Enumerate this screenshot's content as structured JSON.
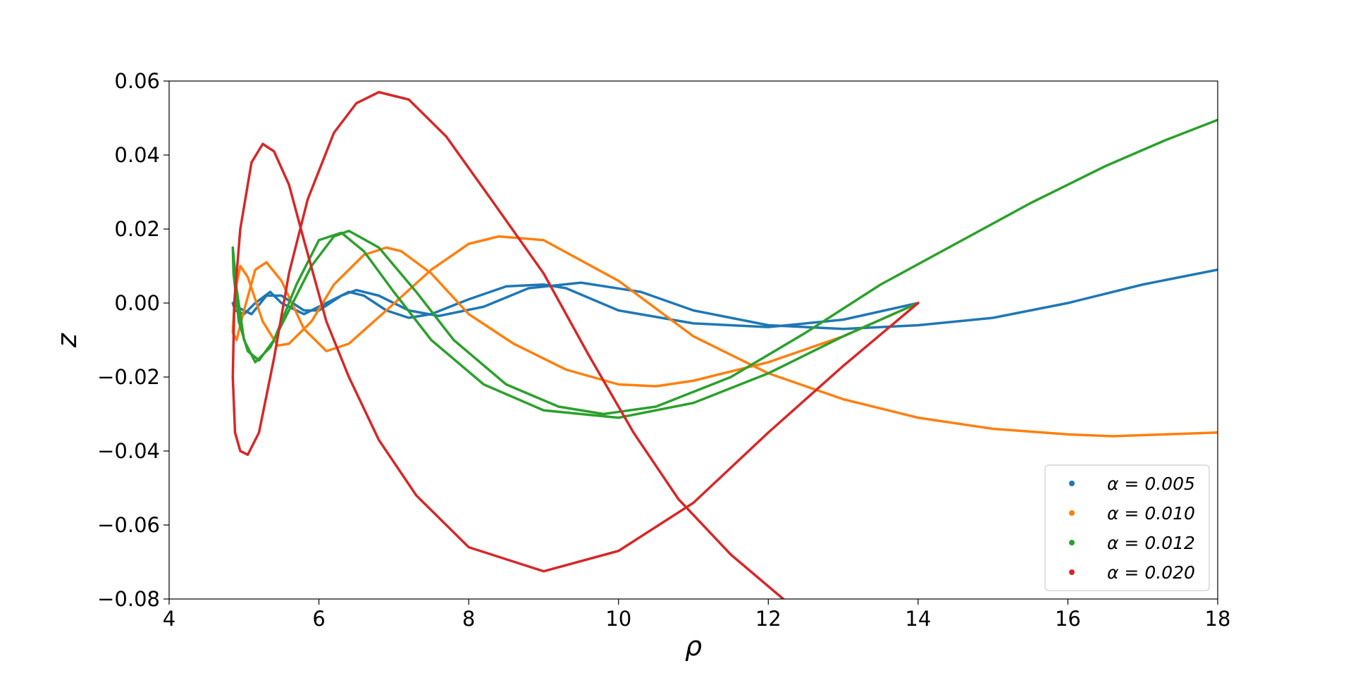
{
  "chart_data": {
    "type": "line",
    "xlabel": "ρ",
    "ylabel": "z",
    "xlim": [
      4,
      18
    ],
    "ylim": [
      -0.08,
      0.06
    ],
    "xticks": [
      4,
      6,
      8,
      10,
      12,
      14,
      16,
      18
    ],
    "yticks": [
      {
        "value": -0.08,
        "label": "−0.08"
      },
      {
        "value": -0.06,
        "label": "−0.06"
      },
      {
        "value": -0.04,
        "label": "−0.04"
      },
      {
        "value": -0.02,
        "label": "−0.02"
      },
      {
        "value": 0,
        "label": "0.00"
      },
      0.02,
      0.04,
      0.06
    ],
    "grid": false,
    "legend": "lower right",
    "series": [
      {
        "name": "α = 0.005",
        "color": "#1f77b4",
        "x": [
          14,
          13,
          12,
          11,
          10,
          9.3,
          9,
          8.5,
          8,
          7.5,
          7.2,
          6.9,
          6.6,
          6.4,
          6.1,
          5.8,
          5.5,
          5.35,
          5.15,
          5.0,
          4.88,
          4.85,
          4.9,
          5.1,
          5.3,
          5.5,
          5.8,
          6.0,
          6.3,
          6.5,
          6.8,
          7.2,
          7.6,
          8.2,
          8.8,
          9.5,
          10.3,
          11,
          12,
          13,
          14,
          15,
          16,
          17,
          18
        ],
        "values": [
          0,
          -0.0045,
          -0.0065,
          -0.0055,
          -0.002,
          0.004,
          0.005,
          0.0045,
          0.001,
          -0.003,
          -0.004,
          -0.002,
          0.002,
          0.003,
          0,
          -0.003,
          0,
          0.003,
          0,
          -0.003,
          -0.002,
          0,
          -0.001,
          -0.003,
          0.002,
          0.002,
          -0.002,
          -0.002,
          0.002,
          0.0035,
          0.002,
          -0.002,
          -0.0035,
          -0.001,
          0.004,
          0.0055,
          0.003,
          -0.002,
          -0.006,
          -0.007,
          -0.006,
          -0.004,
          0,
          0.005,
          0.009
        ]
      },
      {
        "name": "α = 0.010",
        "color": "#ff7f0e",
        "x": [
          14,
          13,
          12,
          11,
          10.5,
          10,
          9.3,
          8.6,
          8,
          7.5,
          7.1,
          6.9,
          6.6,
          6.2,
          5.9,
          5.6,
          5.45,
          5.25,
          5.05,
          4.95,
          4.88,
          4.85,
          4.9,
          5.0,
          5.15,
          5.3,
          5.5,
          5.8,
          6.1,
          6.4,
          6.9,
          7.5,
          8,
          8.4,
          9,
          10,
          11,
          12,
          13,
          14,
          15,
          16,
          16.6,
          17.3,
          18
        ],
        "values": [
          0,
          -0.009,
          -0.016,
          -0.021,
          -0.0225,
          -0.022,
          -0.018,
          -0.011,
          -0.003,
          0.008,
          0.014,
          0.015,
          0.013,
          0.005,
          -0.005,
          -0.011,
          -0.0115,
          -0.005,
          0.007,
          0.01,
          0.003,
          -0.008,
          -0.01,
          -0.002,
          0.009,
          0.011,
          0.006,
          -0.007,
          -0.013,
          -0.011,
          -0.002,
          0.009,
          0.016,
          0.018,
          0.017,
          0.006,
          -0.009,
          -0.019,
          -0.026,
          -0.031,
          -0.034,
          -0.0355,
          -0.036,
          -0.0355,
          -0.035
        ]
      },
      {
        "name": "α = 0.012",
        "color": "#2ca02c",
        "x": [
          14,
          13,
          12,
          11,
          10,
          9,
          8.2,
          7.5,
          7,
          6.6,
          6.3,
          6,
          5.7,
          5.4,
          5.2,
          5.05,
          4.93,
          4.86,
          4.85,
          4.9,
          5.0,
          5.15,
          5.35,
          5.6,
          5.9,
          6.2,
          6.4,
          6.8,
          7.3,
          7.8,
          8.5,
          9.2,
          9.8,
          10.5,
          11.5,
          12.5,
          13.5,
          14.5,
          15.5,
          16.5,
          17.3,
          18
        ],
        "values": [
          0,
          -0.009,
          -0.019,
          -0.027,
          -0.031,
          -0.029,
          -0.022,
          -0.01,
          0.003,
          0.014,
          0.019,
          0.017,
          0.005,
          -0.01,
          -0.0155,
          -0.013,
          -0.005,
          0.008,
          0.015,
          0.004,
          -0.01,
          -0.016,
          -0.012,
          -0.002,
          0.01,
          0.018,
          0.0195,
          0.015,
          0.003,
          -0.01,
          -0.022,
          -0.028,
          -0.03,
          -0.028,
          -0.02,
          -0.008,
          0.005,
          0.016,
          0.027,
          0.037,
          0.044,
          0.0495
        ]
      },
      {
        "name": "α = 0.020",
        "color": "#d62728",
        "x": [
          14,
          13,
          12,
          11,
          10,
          9,
          8,
          7.3,
          6.8,
          6.4,
          6.1,
          5.8,
          5.6,
          5.4,
          5.25,
          5.1,
          4.95,
          4.87,
          4.85,
          4.88,
          4.95,
          5.05,
          5.2,
          5.4,
          5.6,
          5.85,
          6.2,
          6.5,
          6.8,
          7.2,
          7.7,
          8.3,
          9,
          9.6,
          10.2,
          10.8,
          11.5,
          12.2
        ],
        "values": [
          0,
          -0.017,
          -0.035,
          -0.054,
          -0.067,
          -0.0725,
          -0.066,
          -0.052,
          -0.037,
          -0.02,
          -0.005,
          0.017,
          0.032,
          0.041,
          0.043,
          0.038,
          0.02,
          0,
          -0.02,
          -0.035,
          -0.04,
          -0.041,
          -0.035,
          -0.015,
          0.008,
          0.028,
          0.046,
          0.054,
          0.057,
          0.055,
          0.045,
          0.028,
          0.008,
          -0.014,
          -0.035,
          -0.053,
          -0.068,
          -0.08
        ]
      }
    ]
  }
}
